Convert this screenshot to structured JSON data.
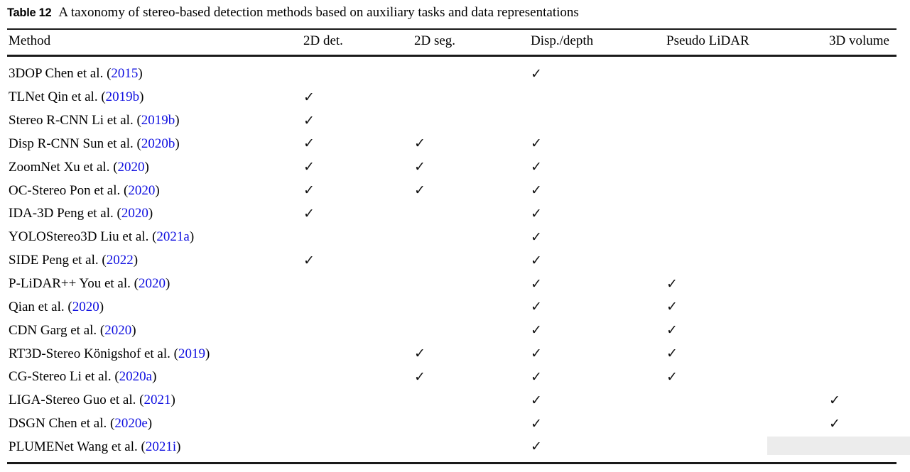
{
  "caption": {
    "label": "Table 12",
    "text": "A taxonomy of stereo-based detection methods based on auxiliary tasks and data representations"
  },
  "table": {
    "columns": [
      "Method",
      "2D det.",
      "2D seg.",
      "Disp./depth",
      "Pseudo LiDAR",
      "3D volume"
    ],
    "check_glyph": "✓",
    "rows": [
      {
        "method": "3DOP Chen et al.",
        "year": "2015",
        "checks": [
          false,
          false,
          true,
          false,
          false
        ]
      },
      {
        "method": "TLNet Qin et al.",
        "year": "2019b",
        "checks": [
          true,
          false,
          false,
          false,
          false
        ]
      },
      {
        "method": "Stereo R-CNN Li et al.",
        "year": "2019b",
        "checks": [
          true,
          false,
          false,
          false,
          false
        ]
      },
      {
        "method": "Disp R-CNN Sun et al.",
        "year": "2020b",
        "checks": [
          true,
          true,
          true,
          false,
          false
        ]
      },
      {
        "method": "ZoomNet Xu et al.",
        "year": "2020",
        "checks": [
          true,
          true,
          true,
          false,
          false
        ]
      },
      {
        "method": "OC-Stereo Pon et al.",
        "year": "2020",
        "checks": [
          true,
          true,
          true,
          false,
          false
        ]
      },
      {
        "method": "IDA-3D Peng et al.",
        "year": "2020",
        "checks": [
          true,
          false,
          true,
          false,
          false
        ]
      },
      {
        "method": "YOLOStereo3D Liu et al.",
        "year": "2021a",
        "checks": [
          false,
          false,
          true,
          false,
          false
        ]
      },
      {
        "method": "SIDE Peng et al.",
        "year": "2022",
        "checks": [
          true,
          false,
          true,
          false,
          false
        ]
      },
      {
        "method": "P-LiDAR++ You et al.",
        "year": "2020",
        "checks": [
          false,
          false,
          true,
          true,
          false
        ]
      },
      {
        "method": "Qian et al.",
        "year": "2020",
        "checks": [
          false,
          false,
          true,
          true,
          false
        ]
      },
      {
        "method": "CDN Garg et al.",
        "year": "2020",
        "checks": [
          false,
          false,
          true,
          true,
          false
        ]
      },
      {
        "method": "RT3D-Stereo Königshof et al.",
        "year": "2019",
        "checks": [
          false,
          true,
          true,
          true,
          false
        ]
      },
      {
        "method": "CG-Stereo Li et al.",
        "year": "2020a",
        "checks": [
          false,
          true,
          true,
          true,
          false
        ]
      },
      {
        "method": "LIGA-Stereo Guo et al.",
        "year": "2021",
        "checks": [
          false,
          false,
          true,
          false,
          true
        ]
      },
      {
        "method": "DSGN Chen et al.",
        "year": "2020e",
        "checks": [
          false,
          false,
          true,
          false,
          true
        ]
      },
      {
        "method": "PLUMENet Wang et al.",
        "year": "2021i",
        "checks": [
          false,
          false,
          true,
          false,
          true
        ]
      }
    ]
  },
  "colors": {
    "text": "#000000",
    "citation_blue": "#0f0fe0",
    "rule": "#1a1a1a",
    "watermark_gray": "#ececec"
  }
}
